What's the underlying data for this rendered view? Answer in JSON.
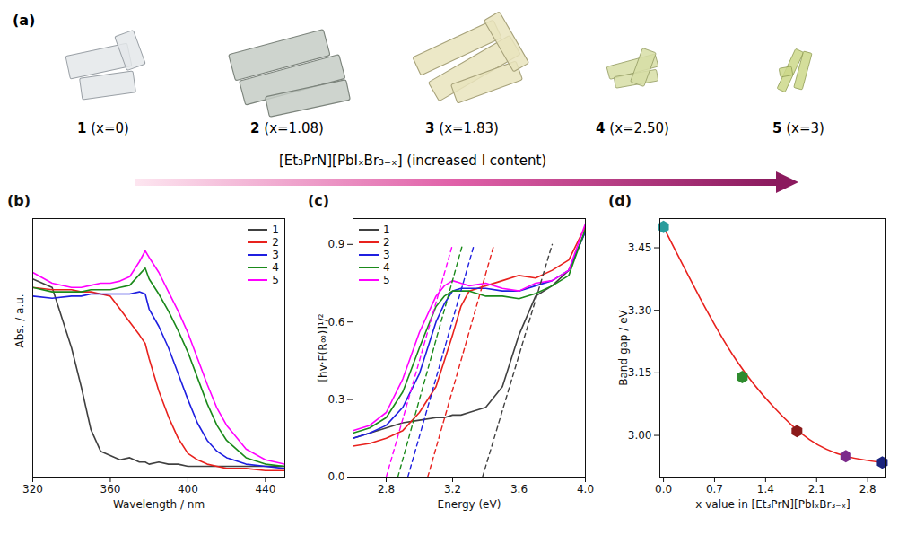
{
  "panel_a": {
    "panel": "(a)",
    "samples": [
      {
        "label": "1",
        "composition": "(x=0)"
      },
      {
        "label": "2",
        "composition": "(x=1.08)"
      },
      {
        "label": "3",
        "composition": "(x=1.83)"
      },
      {
        "label": "4",
        "composition": "(x=2.50)"
      },
      {
        "label": "5",
        "composition": "(x=3)"
      }
    ],
    "formula": "[Et₃PrN][PbIₓBr₃₋ₓ]",
    "caption": "(increased I content)"
  },
  "chart_data": [
    {
      "panel": "(b)",
      "type": "line",
      "x_label": "Wavelength / nm",
      "y_label": "Abs. / a.u.",
      "x": [
        320,
        330,
        340,
        345,
        350,
        355,
        360,
        365,
        370,
        375,
        378,
        380,
        385,
        390,
        395,
        400,
        405,
        410,
        415,
        420,
        430,
        440,
        450
      ],
      "xlim": [
        320,
        450
      ],
      "xticks": [
        320,
        360,
        400,
        440
      ],
      "ylim": [
        0,
        1.2
      ],
      "tick_labels": "x",
      "legend": "top-right",
      "series": [
        {
          "name": "1",
          "color": "#404040",
          "values": [
            0.92,
            0.88,
            0.6,
            0.42,
            0.22,
            0.12,
            0.1,
            0.08,
            0.09,
            0.07,
            0.07,
            0.06,
            0.07,
            0.06,
            0.06,
            0.05,
            0.05,
            0.05,
            0.05,
            0.05,
            0.05,
            0.05,
            0.05
          ]
        },
        {
          "name": "2",
          "color": "#e8211d",
          "values": [
            0.88,
            0.87,
            0.87,
            0.86,
            0.86,
            0.85,
            0.84,
            0.78,
            0.72,
            0.66,
            0.62,
            0.55,
            0.4,
            0.28,
            0.18,
            0.11,
            0.08,
            0.06,
            0.05,
            0.04,
            0.04,
            0.03,
            0.03
          ]
        },
        {
          "name": "3",
          "color": "#1f1fe0",
          "values": [
            0.84,
            0.83,
            0.84,
            0.84,
            0.85,
            0.85,
            0.85,
            0.85,
            0.85,
            0.86,
            0.85,
            0.78,
            0.7,
            0.6,
            0.48,
            0.36,
            0.25,
            0.17,
            0.12,
            0.09,
            0.06,
            0.05,
            0.04
          ]
        },
        {
          "name": "4",
          "color": "#1a8a1a",
          "values": [
            0.88,
            0.86,
            0.86,
            0.86,
            0.87,
            0.87,
            0.87,
            0.88,
            0.89,
            0.94,
            0.97,
            0.92,
            0.85,
            0.77,
            0.68,
            0.58,
            0.46,
            0.34,
            0.24,
            0.17,
            0.09,
            0.06,
            0.05
          ]
        },
        {
          "name": "5",
          "color": "#ff00ff",
          "values": [
            0.95,
            0.9,
            0.88,
            0.88,
            0.89,
            0.9,
            0.9,
            0.91,
            0.93,
            1.0,
            1.05,
            1.02,
            0.95,
            0.86,
            0.77,
            0.67,
            0.55,
            0.43,
            0.32,
            0.24,
            0.13,
            0.08,
            0.06
          ]
        }
      ]
    },
    {
      "panel": "(c)",
      "type": "line",
      "x_label": "Energy (eV)",
      "y_label": "[hv·F(R∞)]¹/²",
      "x": [
        2.6,
        2.7,
        2.8,
        2.9,
        3.0,
        3.1,
        3.15,
        3.2,
        3.25,
        3.3,
        3.4,
        3.5,
        3.6,
        3.7,
        3.8,
        3.9,
        4.0
      ],
      "xlim": [
        2.6,
        4.0
      ],
      "xticks": [
        2.8,
        3.2,
        3.6,
        {
          "value": 4,
          "label": "4.0"
        }
      ],
      "ylim": [
        0,
        1.0
      ],
      "yticks": [
        {
          "value": 0,
          "label": "0.0"
        },
        0.3,
        0.6,
        0.9
      ],
      "legend": "top-left",
      "series": [
        {
          "name": "1",
          "color": "#404040",
          "values": [
            0.15,
            0.17,
            0.19,
            0.21,
            0.22,
            0.23,
            0.23,
            0.24,
            0.24,
            0.25,
            0.27,
            0.35,
            0.55,
            0.7,
            0.74,
            0.8,
            0.95
          ],
          "fit": {
            "x": [
              3.38,
              3.8
            ],
            "y": [
              0,
              0.9
            ],
            "line_style": "dashed"
          }
        },
        {
          "name": "2",
          "color": "#e8211d",
          "values": [
            0.12,
            0.13,
            0.15,
            0.18,
            0.25,
            0.35,
            0.45,
            0.55,
            0.66,
            0.72,
            0.74,
            0.76,
            0.78,
            0.77,
            0.8,
            0.84,
            0.97
          ],
          "fit": {
            "x": [
              3.05,
              3.45
            ],
            "y": [
              0,
              0.9
            ],
            "line_style": "dashed"
          }
        },
        {
          "name": "3",
          "color": "#1f1fe0",
          "values": [
            0.15,
            0.17,
            0.2,
            0.27,
            0.4,
            0.6,
            0.67,
            0.72,
            0.73,
            0.73,
            0.73,
            0.72,
            0.72,
            0.74,
            0.76,
            0.8,
            0.95
          ],
          "fit": {
            "x": [
              2.93,
              3.33
            ],
            "y": [
              0,
              0.9
            ],
            "line_style": "dashed"
          }
        },
        {
          "name": "4",
          "color": "#1a8a1a",
          "values": [
            0.17,
            0.19,
            0.23,
            0.33,
            0.5,
            0.66,
            0.7,
            0.72,
            0.72,
            0.72,
            0.7,
            0.7,
            0.69,
            0.71,
            0.74,
            0.78,
            0.96
          ],
          "fit": {
            "x": [
              2.87,
              3.26
            ],
            "y": [
              0,
              0.9
            ],
            "line_style": "dashed"
          }
        },
        {
          "name": "5",
          "color": "#ff00ff",
          "values": [
            0.18,
            0.2,
            0.25,
            0.38,
            0.56,
            0.7,
            0.74,
            0.76,
            0.75,
            0.74,
            0.75,
            0.73,
            0.72,
            0.75,
            0.76,
            0.8,
            0.98
          ],
          "fit": {
            "x": [
              2.8,
              3.2
            ],
            "y": [
              0,
              0.9
            ],
            "line_style": "dashed"
          }
        }
      ]
    },
    {
      "panel": "(d)",
      "type": "scatter",
      "x_label": "x value in [Et₃PrN][PbIₓBr₃₋ₓ]",
      "y_label": "Band gap / eV",
      "x": [
        0,
        1.08,
        1.83,
        2.5,
        3
      ],
      "values": [
        3.5,
        3.14,
        3.01,
        2.95,
        2.935
      ],
      "colors": [
        "#2a9d9d",
        "#2e8b2e",
        "#8b1a1a",
        "#7b2a8b",
        "#1a237e"
      ],
      "marker": "hexagon",
      "xlim": [
        -0.05,
        3.05
      ],
      "xticks": [
        {
          "value": 0,
          "label": "0.0"
        },
        0.7,
        1.4,
        2.1,
        2.8
      ],
      "ylim": [
        2.9,
        3.52
      ],
      "yticks": [
        {
          "value": 3,
          "label": "3.00"
        },
        3.15,
        {
          "value": 3.3,
          "label": "3.30"
        },
        3.45
      ],
      "fit": {
        "x": [
          0,
          0.5,
          1,
          1.5,
          2,
          2.5,
          3
        ],
        "y": [
          3.5,
          3.33,
          3.18,
          3.07,
          2.99,
          2.95,
          2.935
        ],
        "color": "#e8211d",
        "line_style": "solid"
      }
    }
  ]
}
